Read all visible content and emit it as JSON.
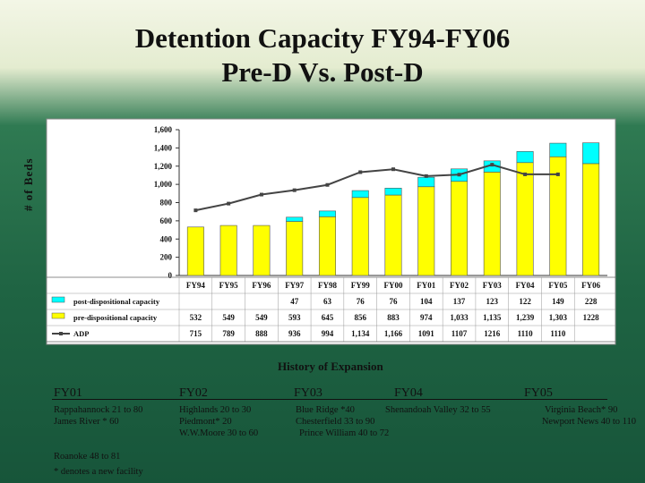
{
  "title": {
    "line1": "Detention Capacity FY94-FY06",
    "line2": "Pre-D Vs. Post-D"
  },
  "chart_data": {
    "type": "bar",
    "title": "Detention Capacity FY94-FY06 Pre-D Vs. Post-D",
    "ylabel": "# of Beds",
    "ylim": [
      0,
      1600
    ],
    "yticks": [
      "0",
      "200",
      "400",
      "600",
      "800",
      "1,000",
      "1,200",
      "1,400",
      "1,600"
    ],
    "ytick_values": [
      0,
      200,
      400,
      600,
      800,
      1000,
      1200,
      1400,
      1600
    ],
    "categories": [
      "FY94",
      "FY95",
      "FY96",
      "FY97",
      "FY98",
      "FY99",
      "FY00",
      "FY01",
      "FY02",
      "FY03",
      "FY04",
      "FY05",
      "FY06"
    ],
    "stacked": true,
    "series": [
      {
        "name": "pre-dispositional capacity",
        "kind": "bar",
        "color": "#ffff00",
        "values": [
          532,
          549,
          549,
          593,
          645,
          856,
          883,
          974,
          1033,
          1135,
          1239,
          1303,
          1228
        ],
        "labels": [
          "532",
          "549",
          "549",
          "593",
          "645",
          "856",
          "883",
          "974",
          "1,033",
          "1,135",
          "1,239",
          "1,303",
          "1228"
        ]
      },
      {
        "name": "post-dispositional capacity",
        "kind": "bar",
        "color": "#00ffff",
        "values": [
          null,
          null,
          null,
          47,
          63,
          76,
          76,
          104,
          137,
          123,
          122,
          149,
          228
        ],
        "labels": [
          "",
          "",
          "",
          "47",
          "63",
          "76",
          "76",
          "104",
          "137",
          "123",
          "122",
          "149",
          "228"
        ]
      },
      {
        "name": "ADP",
        "kind": "line",
        "color": "#444444",
        "values": [
          715,
          789,
          888,
          936,
          994,
          1134,
          1166,
          1091,
          1107,
          1216,
          1110,
          1110,
          null
        ],
        "labels": [
          "715",
          "789",
          "888",
          "936",
          "994",
          "1,134",
          "1,166",
          "1091",
          "1107",
          "1216",
          "1110",
          "1110",
          ""
        ]
      }
    ],
    "legend": "table-below",
    "grid": false
  },
  "history": {
    "title": "History of Expansion",
    "columns": [
      {
        "year": "FY01",
        "lines": [
          "Rappahannock 21 to 80",
          "James River * 60",
          "",
          "",
          "Roanoke 48 to 81"
        ]
      },
      {
        "year": "FY02",
        "lines": [
          "Highlands 20 to 30",
          "Piedmont* 20",
          "W.W.Moore 30 to 60"
        ]
      },
      {
        "year": "FY03",
        "lines": [
          "Blue Ridge *40",
          "Chesterfield 33 to 90",
          "Prince William 40 to 72"
        ]
      },
      {
        "year": "FY04",
        "lines": [
          "Shenandoah Valley 32 to 55"
        ]
      },
      {
        "year": "FY05",
        "lines": [
          "Virginia Beach* 90",
          "Newport News 40 to 110"
        ]
      }
    ],
    "footnote": "* denotes a new facility"
  },
  "colors": {
    "plot_bg": "#ffffff",
    "chart_bg": "#ffffff",
    "pre": "#ffff00",
    "post": "#00ffff",
    "adp": "#444444"
  }
}
